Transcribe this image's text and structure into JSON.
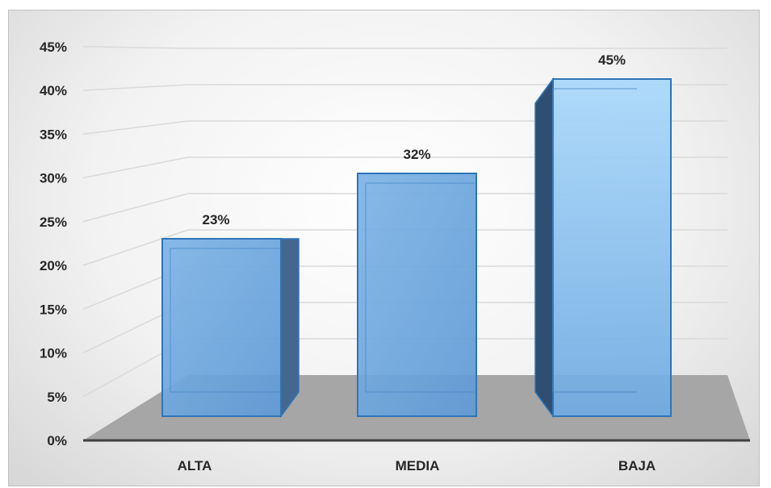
{
  "chart_data": {
    "type": "bar",
    "style": "3d-column",
    "categories": [
      "ALTA",
      "MEDIA",
      "BAJA"
    ],
    "values": [
      23,
      32,
      45
    ],
    "data_labels": [
      "23%",
      "32%",
      "45%"
    ],
    "y_ticks": [
      "0%",
      "5%",
      "10%",
      "15%",
      "20%",
      "25%",
      "30%",
      "35%",
      "40%",
      "45%"
    ],
    "ylim": [
      0,
      45
    ],
    "grid": true,
    "legend": "none",
    "title": "",
    "xlabel": "",
    "ylabel": "",
    "colors": {
      "bar_front": "#6fa8e0",
      "bar_front_highlight": "#9fd0f7",
      "bar_side": "#44678f",
      "bar_outline": "#2e75b6",
      "floor": "#a6a6a6",
      "axis": "#404040",
      "grid": "#d9d9d9"
    }
  }
}
